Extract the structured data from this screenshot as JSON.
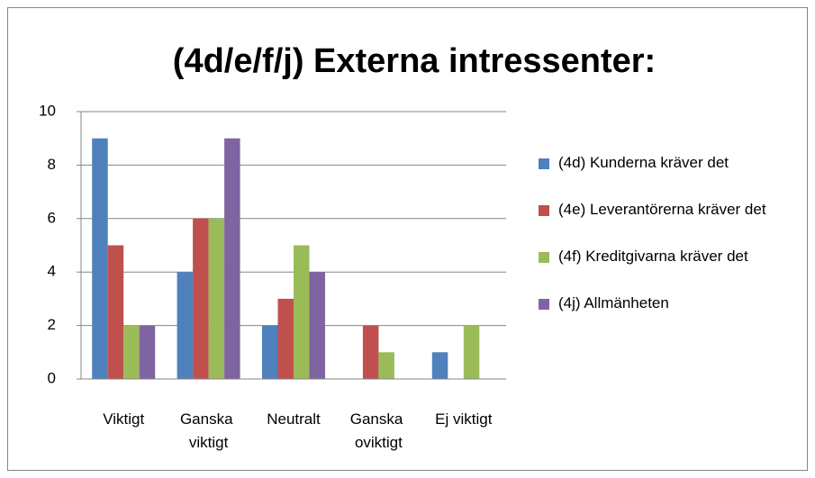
{
  "chart_data": {
    "type": "bar",
    "title": "(4d/e/f/j) Externa intressenter:",
    "categories": [
      "Viktigt",
      "Ganska viktigt",
      "Neutralt",
      "Ganska oviktigt",
      "Ej viktigt"
    ],
    "series": [
      {
        "name": "(4d) Kunderna kräver det",
        "color": "#4f81bd",
        "values": [
          9,
          4,
          2,
          0,
          1
        ]
      },
      {
        "name": "(4e) Leverantörerna kräver det",
        "color": "#c0504d",
        "values": [
          5,
          6,
          3,
          2,
          0
        ]
      },
      {
        "name": "(4f) Kreditgivarna kräver det",
        "color": "#9bbb59",
        "values": [
          2,
          6,
          5,
          1,
          2
        ]
      },
      {
        "name": "(4j) Allmänheten",
        "color": "#8064a2",
        "values": [
          2,
          9,
          4,
          0,
          0
        ]
      }
    ],
    "ylim": [
      0,
      10
    ],
    "yticks": [
      0,
      2,
      4,
      6,
      8,
      10
    ],
    "grid": true,
    "legend": "right"
  }
}
